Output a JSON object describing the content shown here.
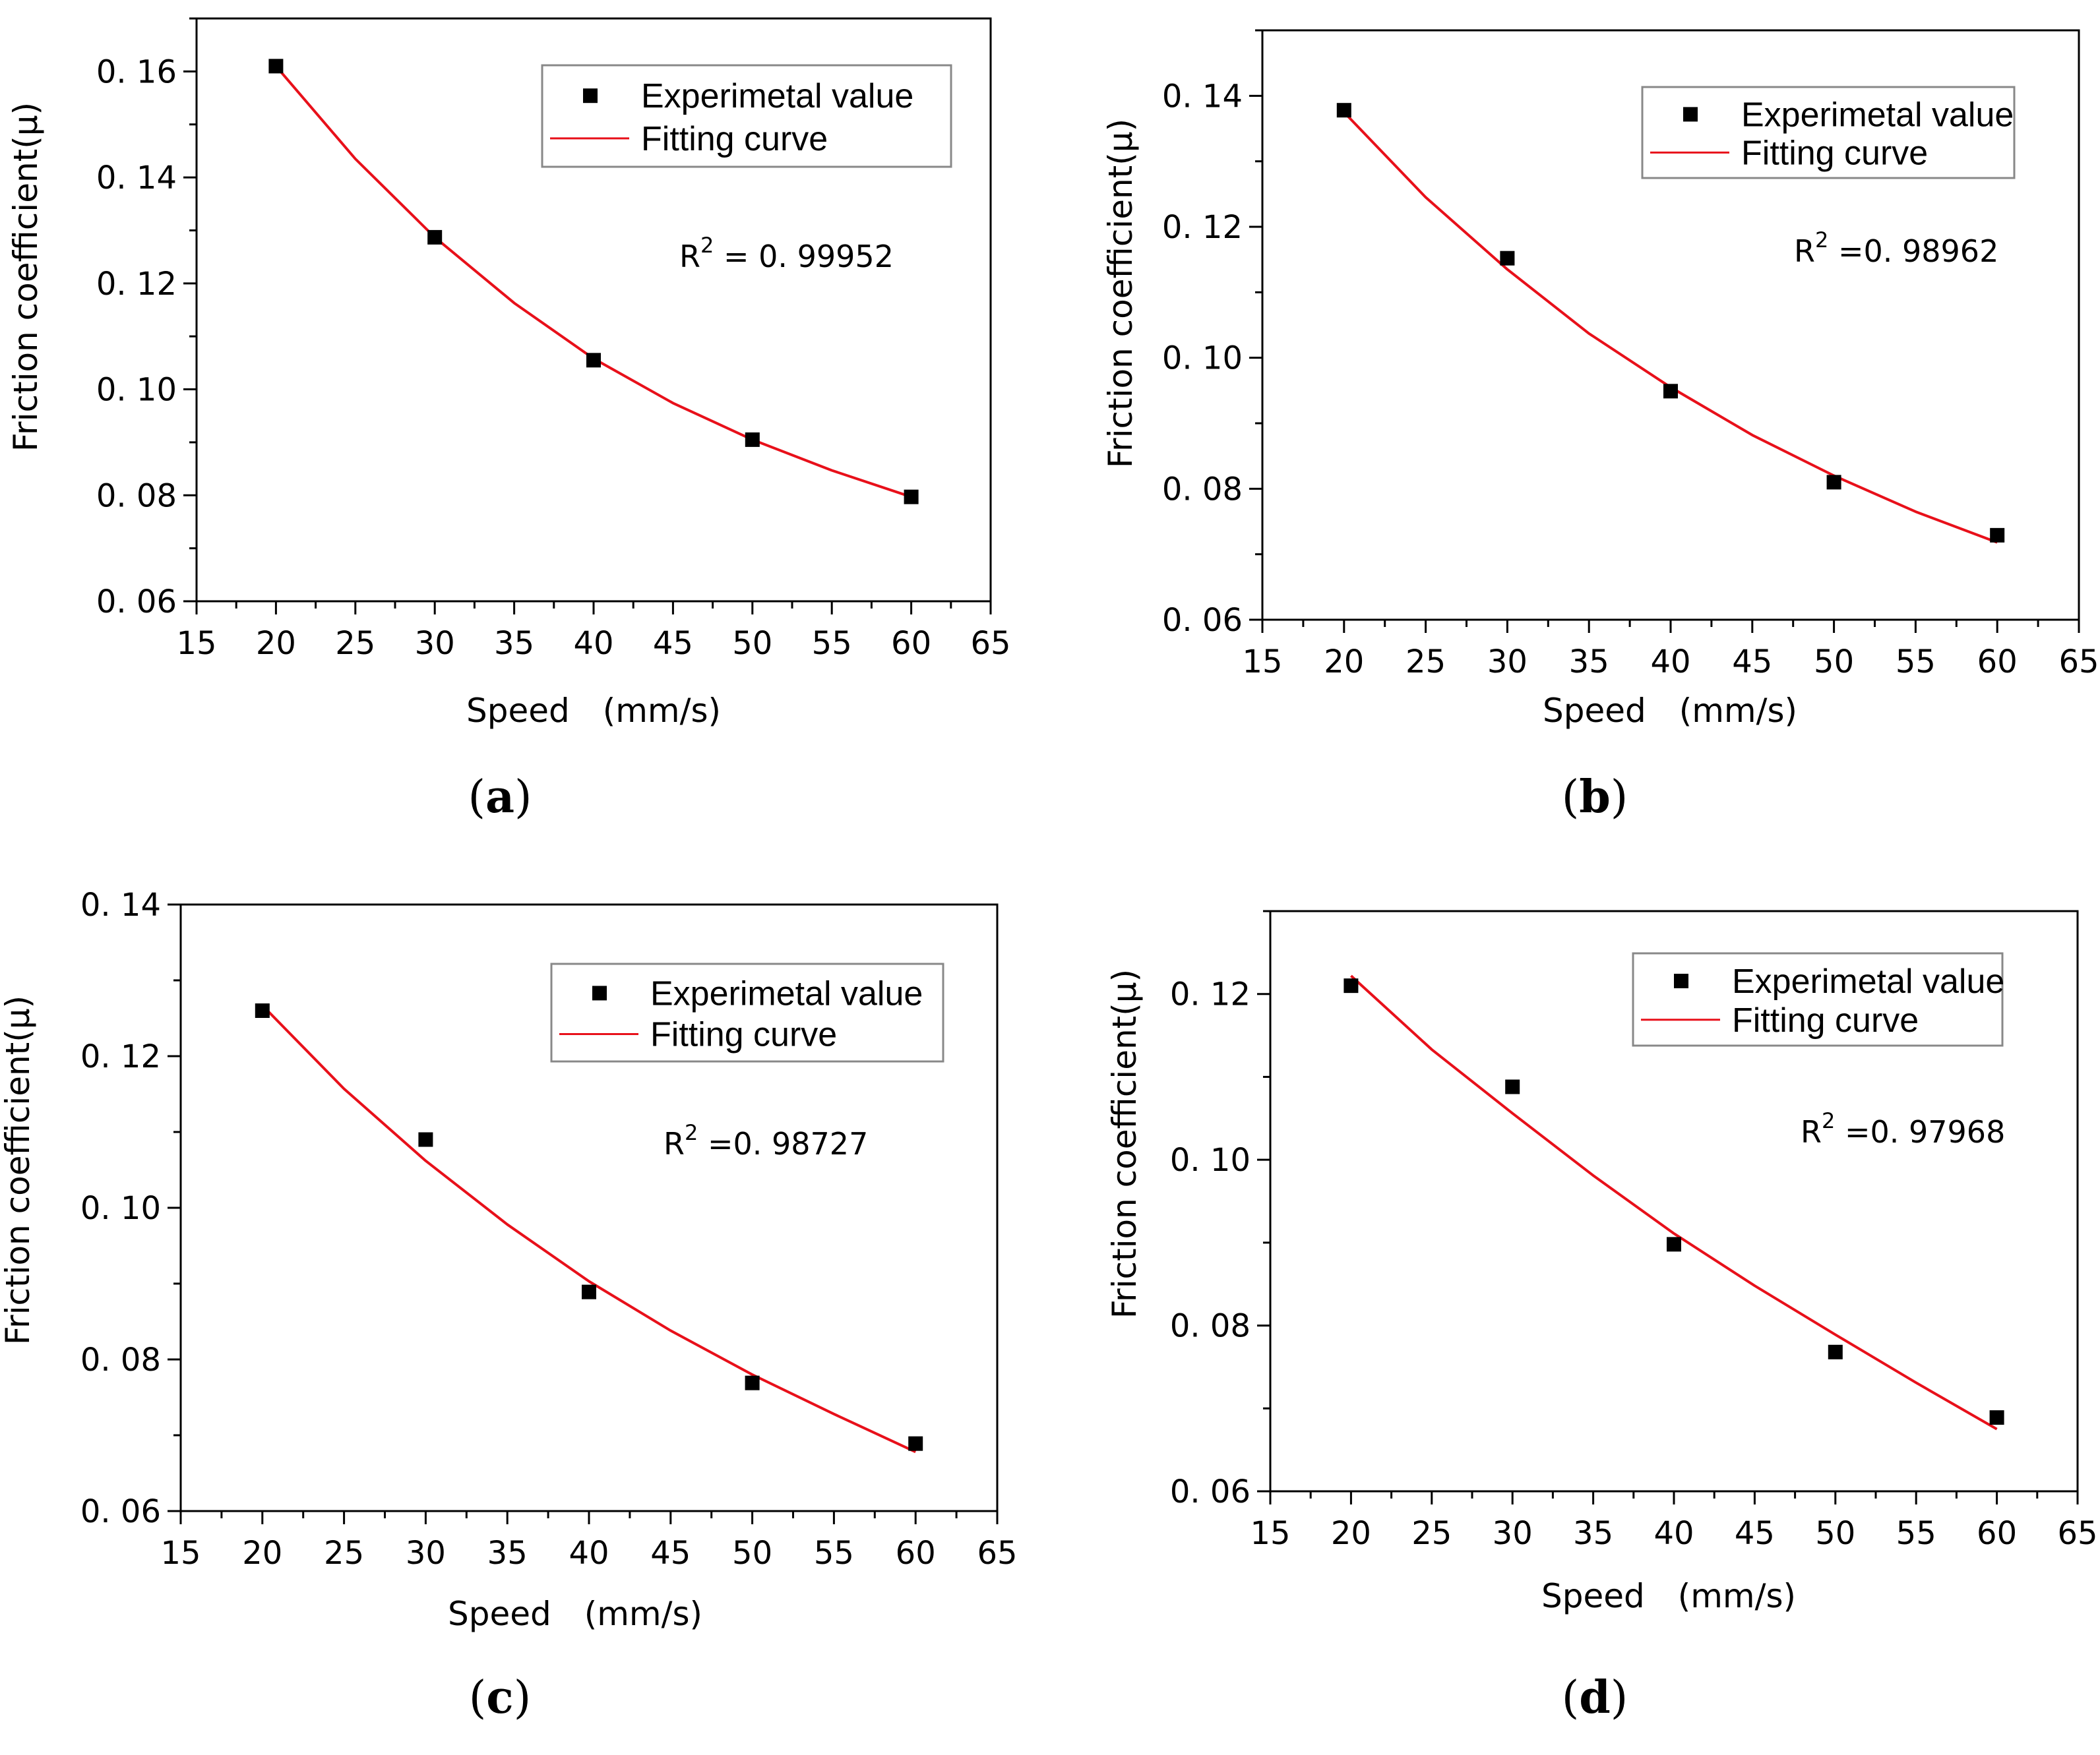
{
  "figure": {
    "legend_labels": {
      "experimental": "Experimetal value",
      "fit": "Fitting curve"
    },
    "colors": {
      "fit_line": "#e8101a",
      "marker": "#000000",
      "frame": "#000000",
      "legend_border": "#888888"
    }
  },
  "chart_data": [
    {
      "type": "scatter",
      "panel_label": "a",
      "xlabel": "Speed　(mm/s)",
      "ylabel": "Friction coefficient(μ)",
      "xlim": [
        15,
        65
      ],
      "ylim": [
        0.06,
        0.17
      ],
      "xticks": [
        15,
        20,
        25,
        30,
        35,
        40,
        45,
        50,
        55,
        60,
        65
      ],
      "yticks": [
        0.06,
        0.08,
        0.1,
        0.12,
        0.14,
        0.16
      ],
      "ytick_labels": [
        "0. 06",
        "0. 08",
        "0. 10",
        "0. 12",
        "0. 14",
        "0. 16"
      ],
      "r2_label": "R",
      "r2_exponent": "2",
      "r2_value": " = 0. 99952",
      "series": [
        {
          "name": "Experimetal value",
          "x": [
            20,
            30,
            40,
            50,
            60
          ],
          "y": [
            0.161,
            0.1287,
            0.1055,
            0.0905,
            0.0797
          ]
        },
        {
          "name": "Fitting curve",
          "x": [
            20,
            25,
            30,
            35,
            40,
            45,
            50,
            55,
            60
          ],
          "y": [
            0.161,
            0.1435,
            0.1287,
            0.1163,
            0.1058,
            0.0974,
            0.0905,
            0.0847,
            0.0797
          ]
        }
      ]
    },
    {
      "type": "scatter",
      "panel_label": "b",
      "xlabel": "Speed　(mm/s)",
      "ylabel": "Friction coefficient(μ)",
      "xlim": [
        15,
        65
      ],
      "ylim": [
        0.06,
        0.15
      ],
      "xticks": [
        15,
        20,
        25,
        30,
        35,
        40,
        45,
        50,
        55,
        60,
        65
      ],
      "yticks": [
        0.06,
        0.08,
        0.1,
        0.12,
        0.14
      ],
      "ytick_labels": [
        "0. 06",
        "0. 08",
        "0. 10",
        "0. 12",
        "0. 14"
      ],
      "r2_label": "R",
      "r2_exponent": "2",
      "r2_value": " =0. 98962",
      "series": [
        {
          "name": "Experimetal value",
          "x": [
            20,
            30,
            40,
            50,
            60
          ],
          "y": [
            0.1378,
            0.1152,
            0.0949,
            0.081,
            0.0729
          ]
        },
        {
          "name": "Fitting curve",
          "x": [
            20,
            25,
            30,
            35,
            40,
            45,
            50,
            55,
            60
          ],
          "y": [
            0.1375,
            0.1245,
            0.1135,
            0.1037,
            0.0955,
            0.0882,
            0.082,
            0.0765,
            0.0718
          ]
        }
      ]
    },
    {
      "type": "scatter",
      "panel_label": "c",
      "xlabel": "Speed　(mm/s)",
      "ylabel": "Friction coefficient(μ)",
      "xlim": [
        15,
        65
      ],
      "ylim": [
        0.06,
        0.14
      ],
      "xticks": [
        15,
        20,
        25,
        30,
        35,
        40,
        45,
        50,
        55,
        60,
        65
      ],
      "yticks": [
        0.06,
        0.08,
        0.1,
        0.12,
        0.14
      ],
      "ytick_labels": [
        "0. 06",
        "0. 08",
        "0. 10",
        "0. 12",
        "0. 14"
      ],
      "r2_label": "R",
      "r2_exponent": "2",
      "r2_value": " =0. 98727",
      "series": [
        {
          "name": "Experimetal value",
          "x": [
            20,
            30,
            40,
            50,
            60
          ],
          "y": [
            0.126,
            0.109,
            0.0889,
            0.0769,
            0.0689
          ]
        },
        {
          "name": "Fitting curve",
          "x": [
            20,
            25,
            30,
            35,
            40,
            45,
            50,
            55,
            60
          ],
          "y": [
            0.1267,
            0.1157,
            0.1062,
            0.0978,
            0.0903,
            0.0838,
            0.078,
            0.0728,
            0.0678
          ]
        }
      ]
    },
    {
      "type": "scatter",
      "panel_label": "d",
      "xlabel": "Speed　(mm/s)",
      "ylabel": "Friction coefficient(μ)",
      "xlim": [
        15,
        65
      ],
      "ylim": [
        0.06,
        0.13
      ],
      "xticks": [
        15,
        20,
        25,
        30,
        35,
        40,
        45,
        50,
        55,
        60,
        65
      ],
      "yticks": [
        0.06,
        0.08,
        0.1,
        0.12
      ],
      "ytick_labels": [
        "0. 06",
        "0. 08",
        "0. 10",
        "0. 12"
      ],
      "r2_label": "R",
      "r2_exponent": "2",
      "r2_value": " =0. 97968",
      "series": [
        {
          "name": "Experimetal value",
          "x": [
            20,
            30,
            40,
            50,
            60
          ],
          "y": [
            0.121,
            0.1088,
            0.0898,
            0.0768,
            0.0689
          ]
        },
        {
          "name": "Fitting curve",
          "x": [
            20,
            25,
            30,
            35,
            40,
            45,
            50,
            55,
            60
          ],
          "y": [
            0.1222,
            0.1133,
            0.1056,
            0.0981,
            0.0911,
            0.0848,
            0.0789,
            0.0731,
            0.0675
          ]
        }
      ]
    }
  ]
}
